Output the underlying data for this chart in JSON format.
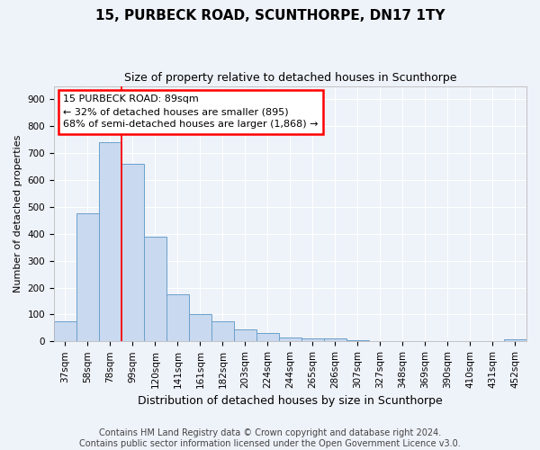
{
  "title": "15, PURBECK ROAD, SCUNTHORPE, DN17 1TY",
  "subtitle": "Size of property relative to detached houses in Scunthorpe",
  "xlabel": "Distribution of detached houses by size in Scunthorpe",
  "ylabel": "Number of detached properties",
  "footnote1": "Contains HM Land Registry data © Crown copyright and database right 2024.",
  "footnote2": "Contains public sector information licensed under the Open Government Licence v3.0.",
  "bar_labels": [
    "37sqm",
    "58sqm",
    "78sqm",
    "99sqm",
    "120sqm",
    "141sqm",
    "161sqm",
    "182sqm",
    "203sqm",
    "224sqm",
    "244sqm",
    "265sqm",
    "286sqm",
    "307sqm",
    "327sqm",
    "348sqm",
    "369sqm",
    "390sqm",
    "410sqm",
    "431sqm",
    "452sqm"
  ],
  "bar_values": [
    75,
    475,
    740,
    660,
    390,
    175,
    100,
    75,
    45,
    30,
    15,
    12,
    10,
    5,
    2,
    2,
    2,
    1,
    0,
    0,
    8
  ],
  "bar_color": "#c9d9ef",
  "bar_edge_color": "#6aa0cb",
  "bar_width": 1.0,
  "property_line_x": 2.5,
  "annotation_title": "15 PURBECK ROAD: 89sqm",
  "annotation_line1": "← 32% of detached houses are smaller (895)",
  "annotation_line2": "68% of semi-detached houses are larger (1,868) →",
  "annotation_box_color": "white",
  "annotation_box_edge_color": "red",
  "line_color": "red",
  "ylim": [
    0,
    950
  ],
  "yticks": [
    0,
    100,
    200,
    300,
    400,
    500,
    600,
    700,
    800,
    900
  ],
  "background_color": "#eef2f9",
  "plot_background": "#eef2f9",
  "grid_color": "white",
  "title_fontsize": 11,
  "subtitle_fontsize": 9,
  "footnote_fontsize": 7,
  "ylabel_fontsize": 8,
  "xlabel_fontsize": 9,
  "tick_fontsize": 7.5,
  "annotation_fontsize": 8
}
